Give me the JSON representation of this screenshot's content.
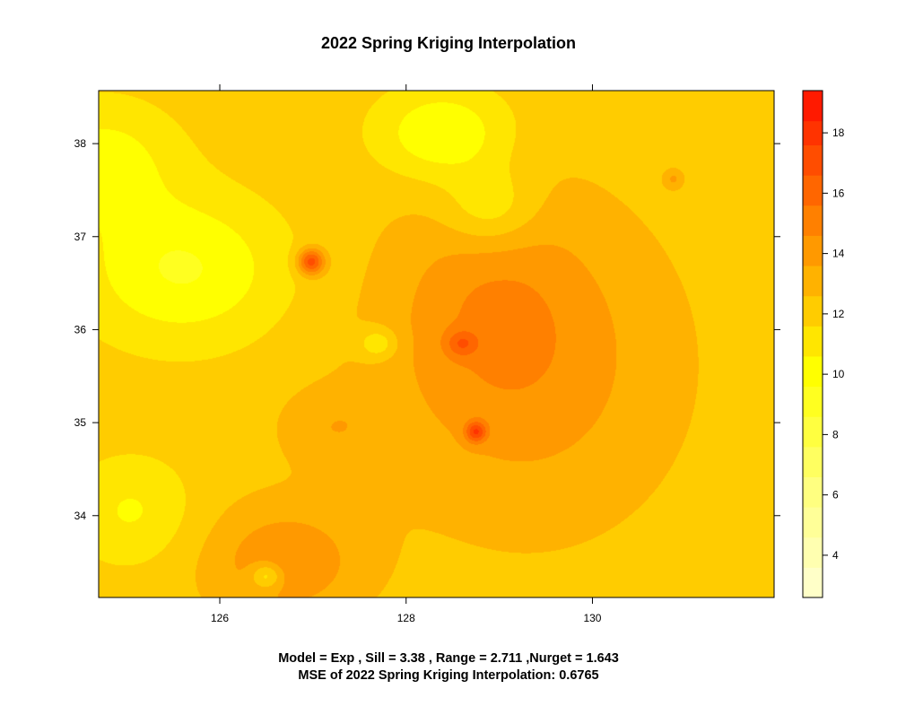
{
  "chart_data": {
    "type": "heatmap",
    "title": "2022 Spring Kriging Interpolation",
    "xlabel": "",
    "ylabel": "",
    "xlim": [
      124.7,
      131.95
    ],
    "ylim": [
      33.12,
      38.57
    ],
    "x_ticks": [
      "126",
      "128",
      "130"
    ],
    "x_tick_values": [
      126,
      128,
      130
    ],
    "y_ticks": [
      "34",
      "35",
      "36",
      "37",
      "38"
    ],
    "y_tick_values": [
      34,
      35,
      36,
      37,
      38
    ],
    "colorbar": {
      "range": [
        2.6,
        19.4
      ],
      "ticks": [
        "4",
        "6",
        "8",
        "10",
        "12",
        "14",
        "16",
        "18"
      ],
      "tick_values": [
        4,
        6,
        8,
        10,
        12,
        14,
        16,
        18
      ],
      "levels": [
        2.6,
        3.6,
        4.6,
        5.6,
        6.6,
        7.6,
        8.6,
        9.6,
        10.6,
        11.6,
        12.6,
        13.6,
        14.6,
        15.6,
        16.6,
        17.6,
        18.4,
        19.4
      ],
      "colors": [
        "#ffffc8",
        "#ffffb0",
        "#ffff98",
        "#ffff80",
        "#ffff60",
        "#ffff40",
        "#ffff20",
        "#ffff00",
        "#ffe600",
        "#ffcc00",
        "#ffb200",
        "#ff9900",
        "#ff8000",
        "#ff6600",
        "#ff4d00",
        "#ff3300",
        "#ff1a00"
      ]
    },
    "field": {
      "base_value": 12.1,
      "features": [
        {
          "x": 125.6,
          "y": 36.65,
          "sx": 0.75,
          "sy": 0.55,
          "value": -2.6
        },
        {
          "x": 124.75,
          "y": 37.8,
          "sx": 0.55,
          "sy": 0.45,
          "value": -2.0
        },
        {
          "x": 125.05,
          "y": 34.05,
          "sx": 0.45,
          "sy": 0.4,
          "value": -1.6
        },
        {
          "x": 128.4,
          "y": 38.1,
          "sx": 0.5,
          "sy": 0.35,
          "value": -2.6
        },
        {
          "x": 128.9,
          "y": 37.3,
          "sx": 0.35,
          "sy": 0.3,
          "value": -2.0
        },
        {
          "x": 127.7,
          "y": 35.85,
          "sx": 0.15,
          "sy": 0.12,
          "value": -2.0
        },
        {
          "x": 126.5,
          "y": 33.35,
          "sx": 0.12,
          "sy": 0.1,
          "value": -2.6
        },
        {
          "x": 129.3,
          "y": 35.6,
          "sx": 1.1,
          "sy": 1.2,
          "value": 2.0
        },
        {
          "x": 128.9,
          "y": 36.3,
          "sx": 0.7,
          "sy": 0.8,
          "value": 1.2
        },
        {
          "x": 126.7,
          "y": 33.5,
          "sx": 0.6,
          "sy": 0.45,
          "value": 2.3
        },
        {
          "x": 127.2,
          "y": 34.95,
          "sx": 0.4,
          "sy": 0.3,
          "value": 1.2
        },
        {
          "x": 126.98,
          "y": 36.73,
          "sx": 0.1,
          "sy": 0.1,
          "value": 5.2
        },
        {
          "x": 128.75,
          "y": 34.9,
          "sx": 0.08,
          "sy": 0.08,
          "value": 4.0
        },
        {
          "x": 128.6,
          "y": 35.85,
          "sx": 0.12,
          "sy": 0.1,
          "value": 2.2
        },
        {
          "x": 130.87,
          "y": 37.62,
          "sx": 0.07,
          "sy": 0.07,
          "value": 1.5
        }
      ]
    }
  },
  "footer": {
    "line1": "Model = Exp , Sill = 3.38 , Range = 2.711 ,Nurget = 1.643",
    "line2": "MSE of 2022 Spring Kriging Interpolation: 0.6765"
  }
}
